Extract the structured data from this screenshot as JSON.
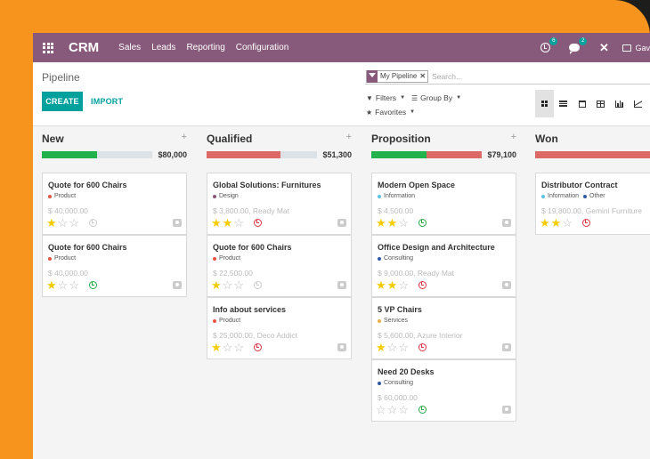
{
  "topbar": {
    "brand": "CRM",
    "menu": [
      "Sales",
      "Leads",
      "Reporting",
      "Configuration"
    ],
    "activity_count": "6",
    "messages_count": "2",
    "user_label": "Gav"
  },
  "control": {
    "breadcrumb": "Pipeline",
    "create_label": "CREATE",
    "import_label": "IMPORT",
    "facet_label": "My Pipeline",
    "search_placeholder": "Search...",
    "filters_label": "Filters",
    "groupby_label": "Group By",
    "favorites_label": "Favorites"
  },
  "colors": {
    "topbar": "#875a7b",
    "accent": "#00a09d",
    "won": "#21b24c",
    "lost": "#dc6965",
    "star": "#f3cc00"
  },
  "columns": [
    {
      "title": "New",
      "total": "$80,000",
      "progress": [
        {
          "color": "#21b24c",
          "fraction": 0.5
        }
      ],
      "cards": [
        {
          "title": "Quote for 600 Chairs",
          "tags": [
            {
              "label": "Product",
              "color": "#e8553f"
            }
          ],
          "amount": "$ 40,000.00",
          "stars": 1,
          "activity": "grey"
        },
        {
          "title": "Quote for 600 Chairs",
          "tags": [
            {
              "label": "Product",
              "color": "#e8553f"
            }
          ],
          "amount": "$ 40,000.00",
          "stars": 1,
          "activity": "green"
        }
      ]
    },
    {
      "title": "Qualified",
      "total": "$51,300",
      "progress": [
        {
          "color": "#dc6965",
          "fraction": 0.67
        }
      ],
      "cards": [
        {
          "title": "Global Solutions: Furnitures",
          "tags": [
            {
              "label": "Design",
              "color": "#875a7b"
            }
          ],
          "amount": "$ 3,800.00, Ready Mat",
          "stars": 2,
          "activity": "red"
        },
        {
          "title": "Quote for 600 Chairs",
          "tags": [
            {
              "label": "Product",
              "color": "#e8553f"
            }
          ],
          "amount": "$ 22,500.00",
          "stars": 1,
          "activity": "grey"
        },
        {
          "title": "Info about services",
          "tags": [
            {
              "label": "Product",
              "color": "#e8553f"
            }
          ],
          "amount": "$ 25,000.00, Deco Addict",
          "stars": 1,
          "activity": "red"
        }
      ]
    },
    {
      "title": "Proposition",
      "total": "$79,100",
      "progress": [
        {
          "color": "#21b24c",
          "fraction": 0.5
        },
        {
          "color": "#dc6965",
          "fraction": 0.5
        }
      ],
      "cards": [
        {
          "title": "Modern Open Space",
          "tags": [
            {
              "label": "Information",
              "color": "#5bc0de"
            }
          ],
          "amount": "$ 4,500.00",
          "stars": 2,
          "activity": "green"
        },
        {
          "title": "Office Design and Architecture",
          "tags": [
            {
              "label": "Consulting",
              "color": "#2e5aa8"
            }
          ],
          "amount": "$ 9,000.00, Ready Mat",
          "stars": 2,
          "activity": "red"
        },
        {
          "title": "5 VP Chairs",
          "tags": [
            {
              "label": "Services",
              "color": "#f0ad4e"
            }
          ],
          "amount": "$ 5,600.00, Azure Interior",
          "stars": 1,
          "activity": "red"
        },
        {
          "title": "Need 20 Desks",
          "tags": [
            {
              "label": "Consulting",
              "color": "#2e5aa8"
            }
          ],
          "amount": "$ 60,000.00",
          "stars": 0,
          "activity": "green"
        }
      ]
    },
    {
      "title": "Won",
      "total": "",
      "progress": [
        {
          "color": "#dc6965",
          "fraction": 1.0
        }
      ],
      "cards": [
        {
          "title": "Distributor Contract",
          "tags": [
            {
              "label": "Information",
              "color": "#5bc0de"
            },
            {
              "label": "Other",
              "color": "#2e5aa8"
            }
          ],
          "amount": "$ 19,800.00, Gemini Furniture",
          "stars": 2,
          "activity": "red"
        }
      ]
    }
  ]
}
